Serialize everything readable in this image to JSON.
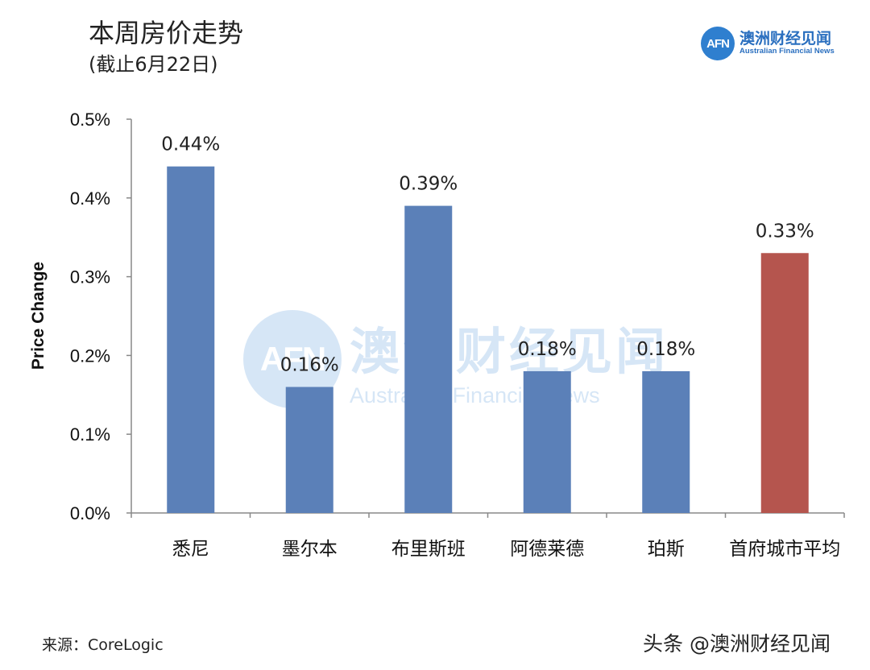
{
  "header": {
    "title": "本周房价走势",
    "subtitle": "(截止6月22日)"
  },
  "logo": {
    "mark": "AFN",
    "name_cn": "澳洲财经见闻",
    "name_en": "Australian Financial News",
    "color": "#2a6fbf"
  },
  "watermark": {
    "mark": "AFN",
    "name_cn": "澳洲财经见闻",
    "name_en": "Australian Financial News"
  },
  "chart_data": {
    "type": "bar",
    "categories": [
      "悉尼",
      "墨尔本",
      "布里斯班",
      "阿德莱德",
      "珀斯",
      "首府城市平均"
    ],
    "values": [
      0.44,
      0.16,
      0.39,
      0.18,
      0.18,
      0.33
    ],
    "data_labels": [
      "0.44%",
      "0.16%",
      "0.39%",
      "0.18%",
      "0.18%",
      "0.33%"
    ],
    "bar_colors": [
      "#5b80b8",
      "#5b80b8",
      "#5b80b8",
      "#5b80b8",
      "#5b80b8",
      "#b5554e"
    ],
    "ylabel": "Price Change",
    "ylim": [
      0,
      0.5
    ],
    "yticks": [
      "0.0%",
      "0.1%",
      "0.2%",
      "0.3%",
      "0.4%",
      "0.5%"
    ],
    "grid": false
  },
  "footer": {
    "source": "来源：CoreLogic",
    "credit": "头条 @澳洲财经见闻"
  }
}
